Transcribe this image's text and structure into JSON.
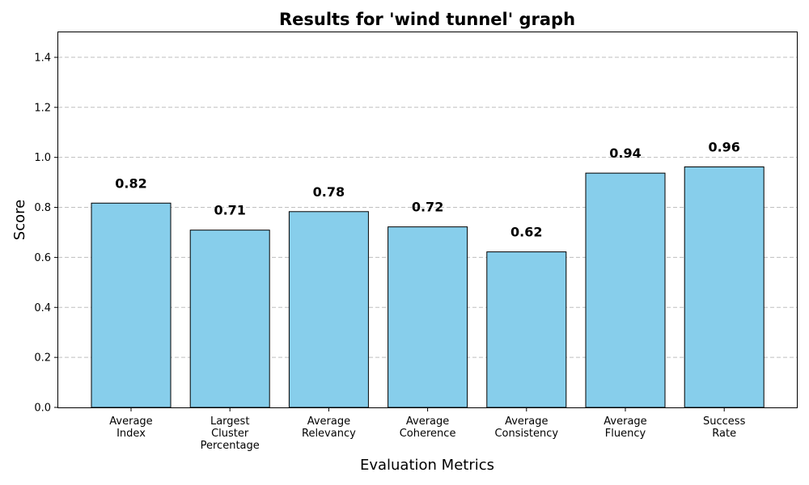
{
  "chart_data": {
    "type": "bar",
    "title": "Results for 'wind tunnel' graph",
    "xlabel": "Evaluation Metrics",
    "ylabel": "Score",
    "ylim": [
      0,
      1.5
    ],
    "yticks": [
      "0.0",
      "0.2",
      "0.4",
      "0.6",
      "0.8",
      "1.0",
      "1.2",
      "1.4"
    ],
    "grid": "y-dashed",
    "bar_color": "#87CEEB",
    "categories": [
      [
        "Average",
        "Index"
      ],
      [
        "Largest",
        "Cluster",
        "Percentage"
      ],
      [
        "Average",
        "Relevancy"
      ],
      [
        "Average",
        "Coherence"
      ],
      [
        "Average",
        "Consistency"
      ],
      [
        "Average",
        "Fluency"
      ],
      [
        "Success",
        "Rate"
      ]
    ],
    "values": [
      0.817,
      0.709,
      0.783,
      0.722,
      0.622,
      0.937,
      0.962
    ],
    "data_labels": [
      "0.82",
      "0.71",
      "0.78",
      "0.72",
      "0.62",
      "0.94",
      "0.96"
    ]
  }
}
